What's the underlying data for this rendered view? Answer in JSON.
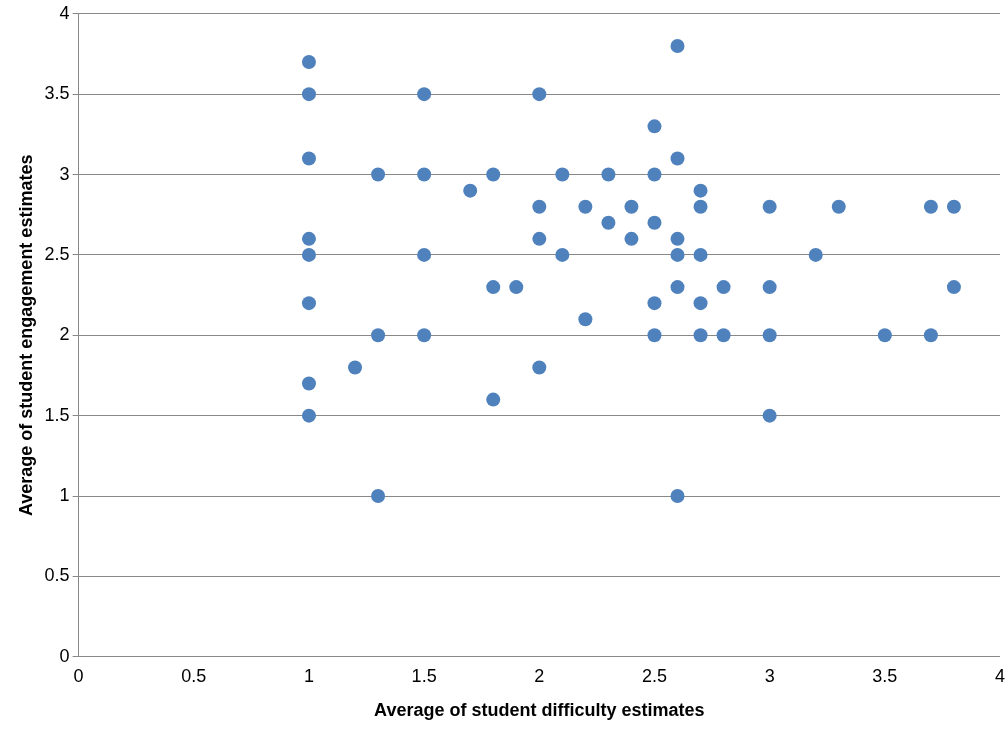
{
  "chart_data": {
    "type": "scatter",
    "xlabel": "Average of student difficulty estimates",
    "ylabel": "Average of student engagement estimates",
    "x": [
      1,
      1,
      1,
      1,
      1,
      1,
      1,
      1,
      1.2,
      1.3,
      1.3,
      1.3,
      1.5,
      1.5,
      1.5,
      1.5,
      1.7,
      1.8,
      1.8,
      1.8,
      1.9,
      2,
      2,
      2,
      2,
      2.1,
      2.1,
      2.2,
      2.2,
      2.3,
      2.3,
      2.4,
      2.4,
      2.5,
      2.5,
      2.5,
      2.5,
      2.5,
      2.6,
      2.6,
      2.6,
      2.6,
      2.6,
      2.6,
      2.7,
      2.7,
      2.7,
      2.7,
      2.7,
      2.8,
      2.8,
      3,
      3,
      3,
      3,
      3.2,
      3.3,
      3.5,
      3.7,
      3.7,
      3.8,
      3.8
    ],
    "values": [
      3.7,
      3.5,
      3.1,
      2.6,
      2.5,
      2.2,
      1.7,
      1.5,
      1.8,
      3,
      2,
      1,
      3.5,
      3,
      2.5,
      2,
      2.9,
      3,
      2.3,
      1.6,
      2.3,
      3.5,
      2.8,
      2.6,
      1.8,
      3,
      2.5,
      2.8,
      2.1,
      3,
      2.7,
      2.8,
      2.6,
      3.3,
      3,
      2.7,
      2.2,
      2,
      3.8,
      3.1,
      2.6,
      2.5,
      2.3,
      1,
      2.9,
      2.8,
      2.5,
      2.2,
      2,
      2.3,
      2,
      2.8,
      2.3,
      2,
      1.5,
      2.5,
      2.8,
      2,
      2.8,
      2,
      2.8,
      2.3
    ],
    "color": "#4f81bd",
    "marker": "circle",
    "xlim": [
      0,
      4
    ],
    "xticks": [
      0,
      0.5,
      1,
      1.5,
      2,
      2.5,
      3,
      3.5,
      4
    ],
    "ylim": [
      0,
      4
    ],
    "yticks": [
      0,
      0.5,
      1,
      1.5,
      2,
      2.5,
      3,
      3.5,
      4
    ],
    "grid": "y",
    "legend": false
  }
}
